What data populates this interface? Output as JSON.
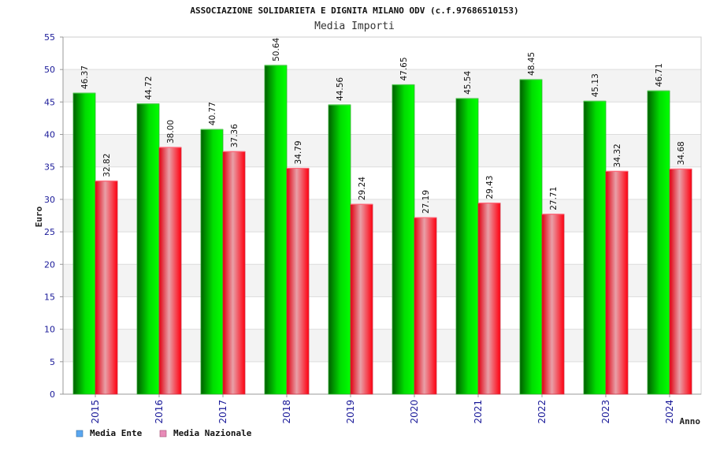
{
  "title": "ASSOCIAZIONE SOLIDARIETA E DIGNITA MILANO ODV (c.f.97686510153)",
  "subtitle": "Media Importi",
  "legend": {
    "position": "bottom-left",
    "items": [
      {
        "label": "Media Ente",
        "color": "#5aa7f0"
      },
      {
        "label": "Media Nazionale",
        "color": "#e88bb8"
      }
    ]
  },
  "chart_data": {
    "type": "bar",
    "title": "ASSOCIAZIONE SOLIDARIETA E DIGNITA MILANO ODV (c.f.97686510153)",
    "subtitle": "Media Importi",
    "xlabel": "Anno",
    "ylabel": "Euro",
    "ylim": [
      0,
      55
    ],
    "yticks": [
      0,
      5,
      10,
      15,
      20,
      25,
      30,
      35,
      40,
      45,
      50,
      55
    ],
    "grid": true,
    "legend_position": "bottom-left",
    "categories": [
      "2015",
      "2016",
      "2017",
      "2018",
      "2019",
      "2020",
      "2021",
      "2022",
      "2023",
      "2024"
    ],
    "series": [
      {
        "name": "Media Ente",
        "color": "#00c400",
        "values": [
          46.37,
          44.72,
          40.77,
          50.64,
          44.56,
          47.65,
          45.54,
          48.45,
          45.13,
          46.71
        ],
        "labels": [
          "46.37",
          "44.72",
          "40.77",
          "50.64",
          "44.56",
          "47.65",
          "45.54",
          "48.45",
          "45.13",
          "46.71"
        ]
      },
      {
        "name": "Media Nazionale",
        "color": "#f00010",
        "values": [
          32.82,
          38.0,
          37.36,
          34.79,
          29.24,
          27.19,
          29.43,
          27.71,
          34.32,
          34.68
        ],
        "labels": [
          "32.82",
          "38.00",
          "37.36",
          "34.79",
          "29.24",
          "27.19",
          "29.43",
          "27.71",
          "34.32",
          "34.68"
        ]
      }
    ]
  }
}
